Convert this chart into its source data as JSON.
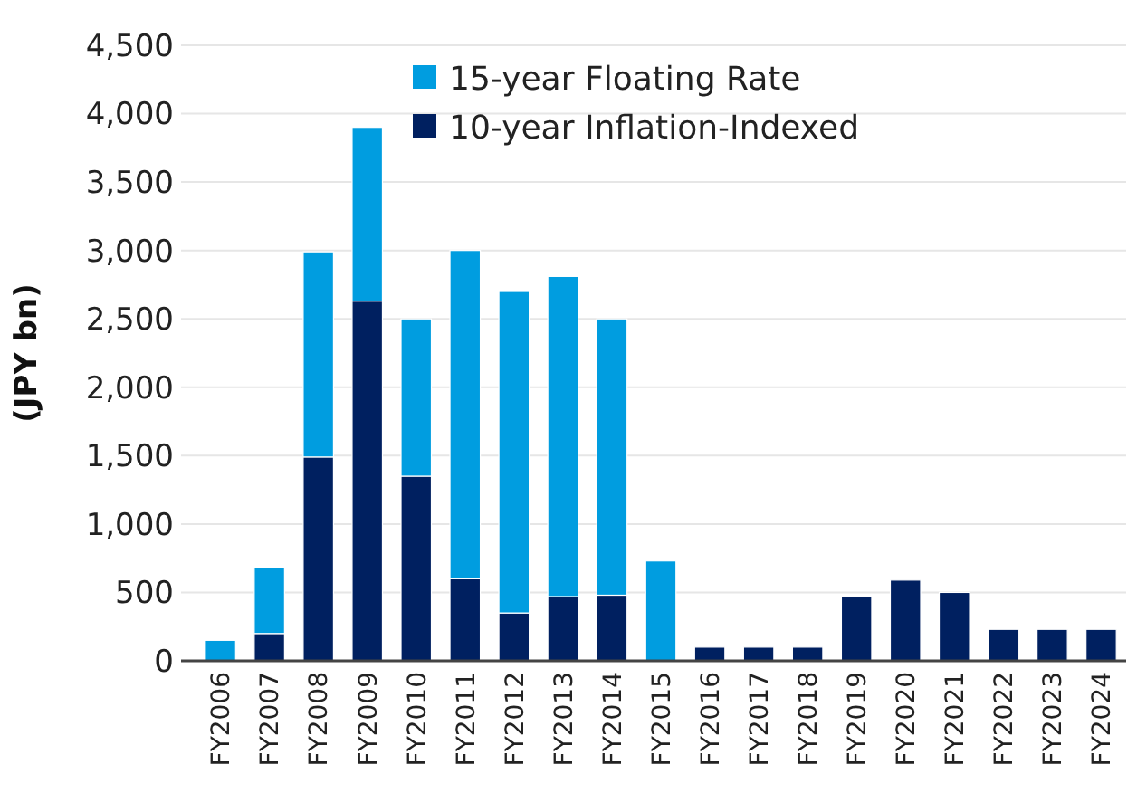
{
  "chart_data": {
    "type": "bar",
    "stacked": true,
    "ylabel": "(JPY bn)",
    "categories": [
      "FY2006",
      "FY2007",
      "FY2008",
      "FY2009",
      "FY2010",
      "FY2011",
      "FY2012",
      "FY2013",
      "FY2014",
      "FY2015",
      "FY2016",
      "FY2017",
      "FY2018",
      "FY2019",
      "FY2020",
      "FY2021",
      "FY2022",
      "FY2023",
      "FY2024"
    ],
    "series": [
      {
        "name": "10-year Inflation-Indexed",
        "color": "#002060",
        "values": [
          0,
          200,
          1490,
          2630,
          1350,
          600,
          350,
          470,
          480,
          0,
          100,
          100,
          100,
          470,
          590,
          500,
          230,
          230,
          230
        ]
      },
      {
        "name": "15-year Floating Rate",
        "color": "#009de0",
        "values": [
          150,
          480,
          1500,
          1270,
          1150,
          2400,
          2350,
          2340,
          2020,
          730,
          0,
          0,
          0,
          0,
          0,
          0,
          0,
          0,
          0
        ]
      }
    ],
    "ylim": [
      0,
      4500
    ],
    "yticks": [
      0,
      {
        "value": 500,
        "label": "500"
      },
      {
        "value": 1000,
        "label": "1,000"
      },
      {
        "value": 1500,
        "label": "1,500"
      },
      {
        "value": 2000,
        "label": "2,000"
      },
      {
        "value": 2500,
        "label": "2,500"
      },
      {
        "value": 3000,
        "label": "3,000"
      },
      {
        "value": 3500,
        "label": "3,500"
      },
      {
        "value": 4000,
        "label": "4,000"
      },
      {
        "value": 4500,
        "label": "4,500"
      }
    ],
    "grid": "y",
    "legend": "top"
  }
}
